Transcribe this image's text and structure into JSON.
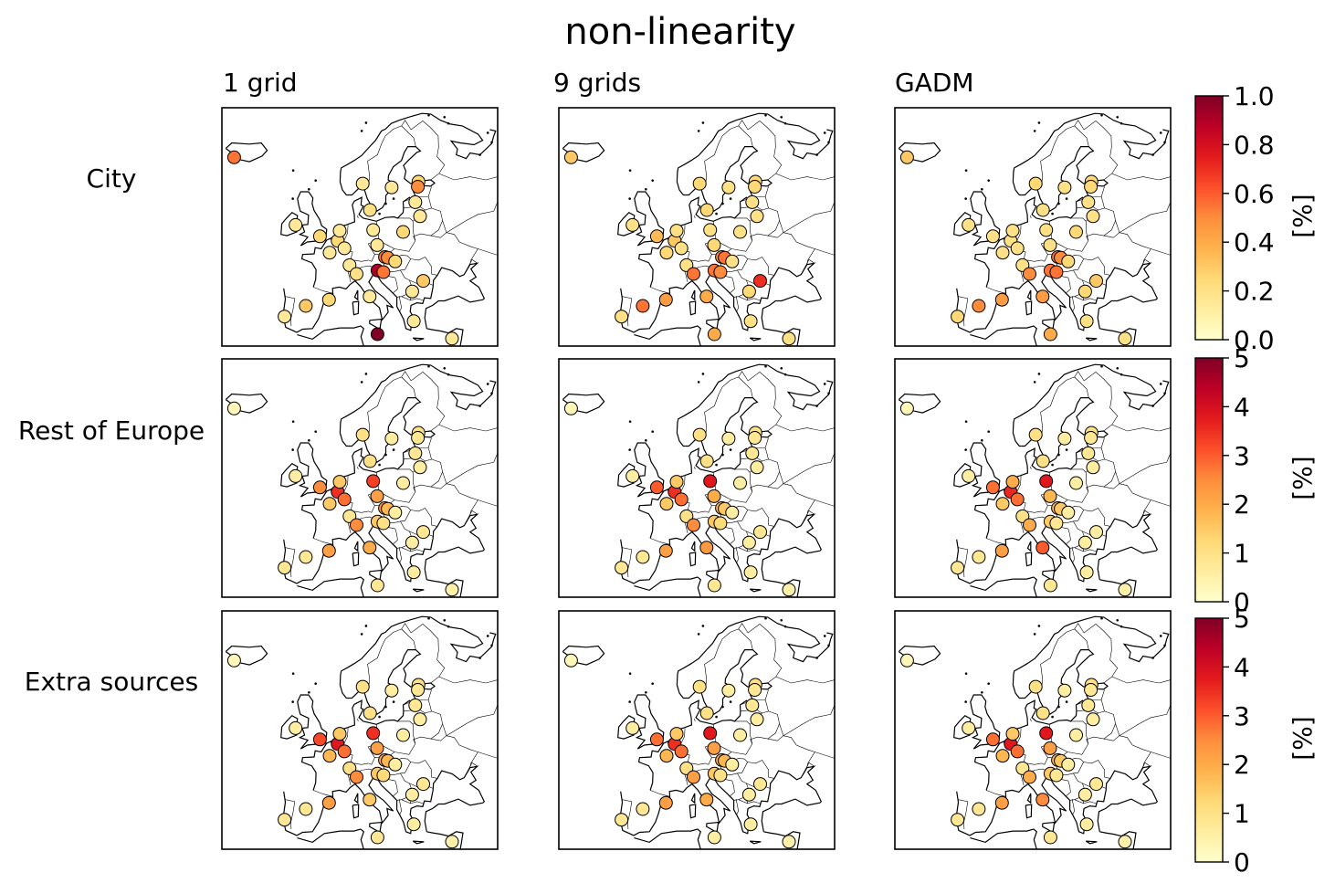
{
  "figure": {
    "title": "non-linearity",
    "columns": [
      "1 grid",
      "9 grids",
      "GADM"
    ],
    "rows": [
      "City",
      "Rest of Europe",
      "Extra sources"
    ]
  },
  "colorbars": [
    {
      "label": "[%]",
      "range": [
        0,
        1.0
      ],
      "ticks": [
        "0.0",
        "0.2",
        "0.4",
        "0.6",
        "0.8",
        "1.0"
      ],
      "colormap": "YlOrRd"
    },
    {
      "label": "[%]",
      "range": [
        0,
        5
      ],
      "ticks": [
        "0",
        "1",
        "2",
        "3",
        "4",
        "5"
      ],
      "colormap": "YlOrRd"
    },
    {
      "label": "[%]",
      "range": [
        0,
        5
      ],
      "ticks": [
        "0",
        "1",
        "2",
        "3",
        "4",
        "5"
      ],
      "colormap": "YlOrRd"
    }
  ],
  "colors": {
    "colormap_stops": [
      "#ffffcc",
      "#ffeda0",
      "#fed976",
      "#feb24c",
      "#fd8d3c",
      "#fc4e2a",
      "#e31a1c",
      "#bd0026",
      "#800026"
    ],
    "marker_edge": "#000000",
    "map_lines": "#000000"
  },
  "chart_data": {
    "type": "scatter",
    "description_of_encoding": "",
    "cities": [
      {
        "id": "reykjavik",
        "lon": -21.9,
        "lat": 64.1
      },
      {
        "id": "dublin",
        "lon": -6.3,
        "lat": 53.3
      },
      {
        "id": "london",
        "lon": -0.1,
        "lat": 51.5
      },
      {
        "id": "brussels",
        "lon": 4.4,
        "lat": 50.8
      },
      {
        "id": "amsterdam",
        "lon": 4.9,
        "lat": 52.4
      },
      {
        "id": "paris",
        "lon": 2.35,
        "lat": 48.9
      },
      {
        "id": "luxembourg",
        "lon": 6.1,
        "lat": 49.6
      },
      {
        "id": "bern",
        "lon": 7.4,
        "lat": 46.9
      },
      {
        "id": "copenhagen",
        "lon": 12.6,
        "lat": 55.7
      },
      {
        "id": "berlin",
        "lon": 13.4,
        "lat": 52.5
      },
      {
        "id": "warsaw",
        "lon": 21.0,
        "lat": 52.2
      },
      {
        "id": "prague",
        "lon": 14.4,
        "lat": 50.1
      },
      {
        "id": "vienna",
        "lon": 16.4,
        "lat": 48.2
      },
      {
        "id": "bratislava",
        "lon": 17.1,
        "lat": 48.1
      },
      {
        "id": "budapest",
        "lon": 19.0,
        "lat": 47.5
      },
      {
        "id": "ljubljana",
        "lon": 14.5,
        "lat": 46.05
      },
      {
        "id": "zagreb",
        "lon": 16.0,
        "lat": 45.8
      },
      {
        "id": "milan",
        "lon": 9.2,
        "lat": 45.5
      },
      {
        "id": "rome",
        "lon": 12.5,
        "lat": 41.9
      },
      {
        "id": "madrid",
        "lon": -3.7,
        "lat": 40.4
      },
      {
        "id": "lisbon",
        "lon": -9.1,
        "lat": 38.7
      },
      {
        "id": "barcelona",
        "lon": 2.2,
        "lat": 41.4
      },
      {
        "id": "oslo",
        "lon": 10.75,
        "lat": 59.9
      },
      {
        "id": "stockholm",
        "lon": 18.1,
        "lat": 59.3
      },
      {
        "id": "helsinki",
        "lon": 24.9,
        "lat": 60.2
      },
      {
        "id": "tallinn",
        "lon": 24.75,
        "lat": 59.4
      },
      {
        "id": "riga",
        "lon": 24.1,
        "lat": 56.95
      },
      {
        "id": "vilnius",
        "lon": 25.3,
        "lat": 54.7
      },
      {
        "id": "bucharest",
        "lon": 26.1,
        "lat": 44.4
      },
      {
        "id": "sofia",
        "lon": 23.3,
        "lat": 42.7
      },
      {
        "id": "athens",
        "lon": 23.7,
        "lat": 37.98
      },
      {
        "id": "valletta",
        "lon": 14.5,
        "lat": 35.9
      },
      {
        "id": "nicosia",
        "lon": 33.4,
        "lat": 35.2
      }
    ],
    "panels": [
      {
        "row": "City",
        "column": "1 grid",
        "values": [
          0.55,
          0.15,
          0.25,
          0.25,
          0.15,
          0.15,
          0.15,
          0.15,
          0.2,
          0.15,
          0.25,
          0.15,
          0.55,
          0.5,
          0.25,
          0.9,
          0.55,
          0.2,
          0.15,
          0.3,
          0.15,
          0.25,
          0.15,
          0.15,
          0.25,
          0.5,
          0.15,
          0.15,
          0.3,
          0.15,
          0.15,
          1.0,
          0.15
        ]
      },
      {
        "row": "City",
        "column": "9 grids",
        "values": [
          0.3,
          0.2,
          0.35,
          0.3,
          0.2,
          0.25,
          0.2,
          0.2,
          0.25,
          0.2,
          0.2,
          0.25,
          0.5,
          0.55,
          0.2,
          0.55,
          0.5,
          0.55,
          0.4,
          0.55,
          0.2,
          0.45,
          0.25,
          0.2,
          0.25,
          0.25,
          0.2,
          0.2,
          0.7,
          0.25,
          0.2,
          0.4,
          0.2
        ]
      },
      {
        "row": "City",
        "column": "GADM",
        "values": [
          0.3,
          0.2,
          0.2,
          0.2,
          0.2,
          0.2,
          0.2,
          0.2,
          0.2,
          0.2,
          0.25,
          0.2,
          0.55,
          0.5,
          0.25,
          0.55,
          0.55,
          0.5,
          0.45,
          0.5,
          0.25,
          0.45,
          0.25,
          0.2,
          0.25,
          0.25,
          0.2,
          0.2,
          0.3,
          0.25,
          0.2,
          0.4,
          0.2
        ]
      },
      {
        "row": "Rest of Europe",
        "column": "1 grid",
        "values": [
          0.3,
          0.6,
          2.5,
          3.5,
          1.5,
          1.5,
          2.8,
          0.8,
          1.0,
          3.3,
          0.6,
          2.2,
          2.3,
          1.8,
          0.6,
          1.5,
          1.0,
          2.5,
          2.0,
          0.8,
          0.8,
          2.2,
          1.0,
          0.6,
          1.0,
          0.8,
          0.8,
          0.6,
          0.8,
          0.6,
          0.6,
          0.8,
          0.5
        ]
      },
      {
        "row": "Rest of Europe",
        "column": "9 grids",
        "values": [
          0.3,
          0.6,
          3.0,
          3.5,
          1.5,
          1.5,
          2.8,
          1.0,
          1.0,
          3.8,
          0.6,
          2.0,
          1.8,
          1.5,
          0.6,
          1.5,
          1.2,
          2.5,
          2.3,
          0.8,
          0.8,
          2.2,
          1.0,
          0.6,
          1.0,
          0.8,
          0.8,
          0.6,
          0.8,
          0.6,
          0.6,
          0.8,
          0.5
        ]
      },
      {
        "row": "Rest of Europe",
        "column": "GADM",
        "values": [
          0.3,
          0.6,
          2.8,
          3.6,
          2.0,
          1.5,
          2.8,
          1.0,
          1.0,
          3.8,
          0.6,
          1.8,
          1.8,
          1.5,
          0.6,
          1.5,
          0.8,
          2.0,
          3.0,
          0.8,
          0.8,
          2.2,
          1.0,
          0.6,
          1.0,
          0.8,
          0.8,
          0.6,
          0.6,
          0.6,
          0.6,
          0.8,
          0.5
        ]
      },
      {
        "row": "Extra sources",
        "column": "1 grid",
        "values": [
          0.3,
          0.6,
          3.2,
          3.8,
          1.5,
          1.8,
          2.8,
          1.0,
          1.0,
          3.5,
          0.6,
          2.2,
          2.0,
          1.8,
          0.6,
          1.5,
          1.2,
          2.5,
          1.5,
          0.8,
          0.8,
          2.2,
          1.0,
          0.6,
          1.0,
          0.8,
          0.8,
          0.6,
          0.8,
          0.6,
          0.6,
          0.8,
          0.5
        ]
      },
      {
        "row": "Extra sources",
        "column": "9 grids",
        "values": [
          0.3,
          0.6,
          2.8,
          3.5,
          1.5,
          1.8,
          2.8,
          1.0,
          1.0,
          3.8,
          0.6,
          2.2,
          2.0,
          1.8,
          0.6,
          1.5,
          1.0,
          2.2,
          2.0,
          0.8,
          0.8,
          2.2,
          1.0,
          0.6,
          1.0,
          0.8,
          0.8,
          0.6,
          0.8,
          0.6,
          0.6,
          0.6,
          0.5
        ]
      },
      {
        "row": "Extra sources",
        "column": "GADM",
        "values": [
          0.3,
          0.6,
          2.8,
          3.8,
          1.5,
          1.8,
          2.8,
          0.8,
          1.0,
          3.8,
          0.6,
          2.2,
          1.8,
          1.5,
          0.6,
          1.5,
          0.8,
          2.0,
          2.5,
          0.8,
          0.8,
          2.2,
          1.0,
          0.6,
          1.0,
          0.8,
          0.8,
          0.6,
          0.8,
          0.6,
          0.6,
          0.8,
          0.5
        ]
      }
    ]
  }
}
